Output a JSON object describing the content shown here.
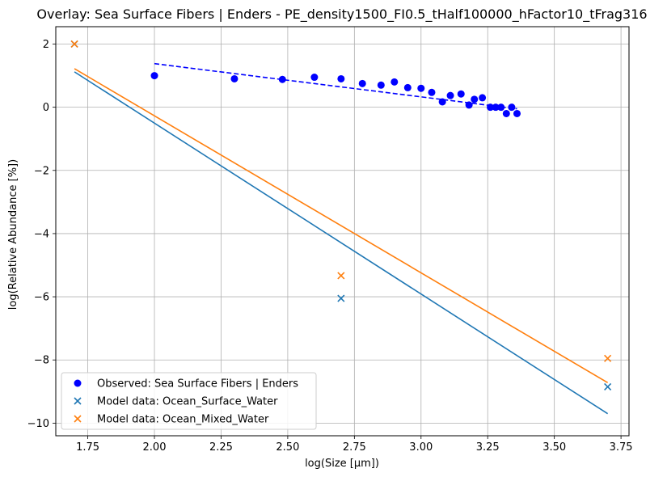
{
  "chart_data": {
    "type": "scatter",
    "title": "Overlay: Sea Surface Fibers | Enders - PE_density1500_FI0.5_tHalf100000_hFactor10_tFrag316",
    "xlabel": "log(Size [μm])",
    "ylabel": "log(Relative Abundance [%])",
    "xlim": [
      1.63,
      3.78
    ],
    "ylim": [
      -10.4,
      2.55
    ],
    "xticks": [
      1.75,
      2.0,
      2.25,
      2.5,
      2.75,
      3.0,
      3.25,
      3.5,
      3.75
    ],
    "xtick_labels": [
      "1.75",
      "2.00",
      "2.25",
      "2.50",
      "2.75",
      "3.00",
      "3.25",
      "3.50",
      "3.75"
    ],
    "yticks": [
      2,
      0,
      -2,
      -4,
      -6,
      -8,
      -10
    ],
    "ytick_labels": [
      "2",
      "0",
      "−2",
      "−4",
      "−6",
      "−8",
      "−10"
    ],
    "grid": true,
    "legend_position": "lower-left",
    "series": [
      {
        "name": "Observed: Sea Surface Fibers | Enders",
        "marker": "circle",
        "color": "#0000ff",
        "x": [
          2.0,
          2.3,
          2.48,
          2.6,
          2.7,
          2.78,
          2.85,
          2.9,
          2.95,
          3.0,
          3.04,
          3.08,
          3.11,
          3.15,
          3.18,
          3.2,
          3.23,
          3.26,
          3.28,
          3.3,
          3.32,
          3.34,
          3.36
        ],
        "y": [
          1.0,
          0.9,
          0.88,
          0.95,
          0.9,
          0.75,
          0.7,
          0.8,
          0.62,
          0.6,
          0.47,
          0.17,
          0.37,
          0.42,
          0.07,
          0.25,
          0.3,
          0.0,
          0.0,
          0.0,
          -0.2,
          0.0,
          -0.2
        ]
      },
      {
        "name": "Model data: Ocean_Surface_Water",
        "marker": "x",
        "color": "#1f77b4",
        "x": [
          1.7,
          2.7,
          3.7
        ],
        "y": [
          2.0,
          -6.05,
          -8.85
        ]
      },
      {
        "name": "Model data: Ocean_Mixed_Water",
        "marker": "x",
        "color": "#ff7f0e",
        "x": [
          1.7,
          2.7,
          3.7
        ],
        "y": [
          2.0,
          -5.33,
          -7.95
        ]
      }
    ],
    "fit_lines": [
      {
        "series": "Observed: Sea Surface Fibers | Enders",
        "color": "#0000ff",
        "style": "dashed",
        "x": [
          2.0,
          3.36
        ],
        "y": [
          1.38,
          -0.05
        ]
      },
      {
        "series": "Model data: Ocean_Surface_Water",
        "color": "#1f77b4",
        "style": "solid",
        "x": [
          1.7,
          3.7
        ],
        "y": [
          1.12,
          -9.7
        ]
      },
      {
        "series": "Model data: Ocean_Mixed_Water",
        "color": "#ff7f0e",
        "style": "solid",
        "x": [
          1.7,
          3.7
        ],
        "y": [
          1.22,
          -8.72
        ]
      }
    ]
  }
}
